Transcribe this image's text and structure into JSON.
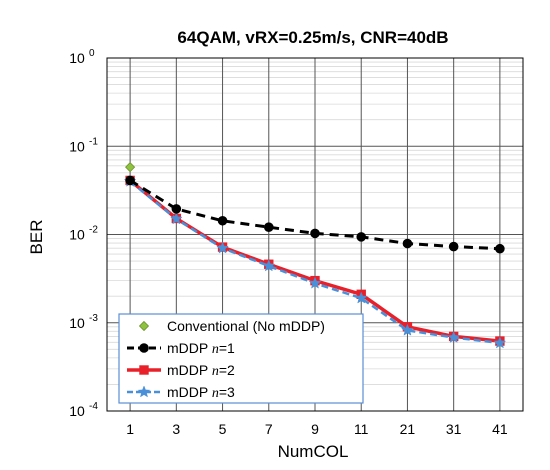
{
  "chart_data": {
    "type": "line",
    "title": "64QAM, vRX=0.25m/s, CNR=40dB",
    "xlabel": "NumCOL",
    "ylabel": "BER",
    "categories": [
      "1",
      "3",
      "5",
      "7",
      "9",
      "11",
      "21",
      "31",
      "41"
    ],
    "y_scale": "log",
    "ylim": [
      0.0001,
      1
    ],
    "y_tick_labels": [
      {
        "base": "10",
        "exp": "0"
      },
      {
        "base": "10",
        "exp": "-1"
      },
      {
        "base": "10",
        "exp": "-2"
      },
      {
        "base": "10",
        "exp": "-3"
      },
      {
        "base": "10",
        "exp": "-4"
      }
    ],
    "grid": true,
    "legend_position": "bottom-left",
    "series": [
      {
        "name": "Conventional (No mDDP)",
        "legend_parts": [
          "Conventional (No mDDP)"
        ],
        "values": [
          0.058,
          null,
          null,
          null,
          null,
          null,
          null,
          null,
          null
        ],
        "color": "#8fc23f",
        "marker": "diamond",
        "line": "none"
      },
      {
        "name": "mDDP n=1",
        "legend_parts": [
          "mDDP ",
          "n",
          "=1"
        ],
        "values": [
          0.041,
          0.0195,
          0.0143,
          0.0121,
          0.0103,
          0.0094,
          0.0079,
          0.0073,
          0.0069
        ],
        "color": "#000000",
        "marker": "circle",
        "line": "dashed"
      },
      {
        "name": "mDDP n=2",
        "legend_parts": [
          "mDDP ",
          "n",
          "=2"
        ],
        "values": [
          0.041,
          0.0152,
          0.0072,
          0.0046,
          0.003,
          0.0021,
          0.0009,
          0.0007,
          0.00062
        ],
        "color": "#e8202a",
        "marker": "square",
        "line": "solid"
      },
      {
        "name": "mDDP n=3",
        "legend_parts": [
          "mDDP ",
          "n",
          "=3"
        ],
        "values": [
          0.04,
          0.015,
          0.007,
          0.0044,
          0.0028,
          0.0019,
          0.00082,
          0.00068,
          0.00059
        ],
        "color": "#4a90d9",
        "marker": "star",
        "line": "dashed"
      }
    ]
  }
}
